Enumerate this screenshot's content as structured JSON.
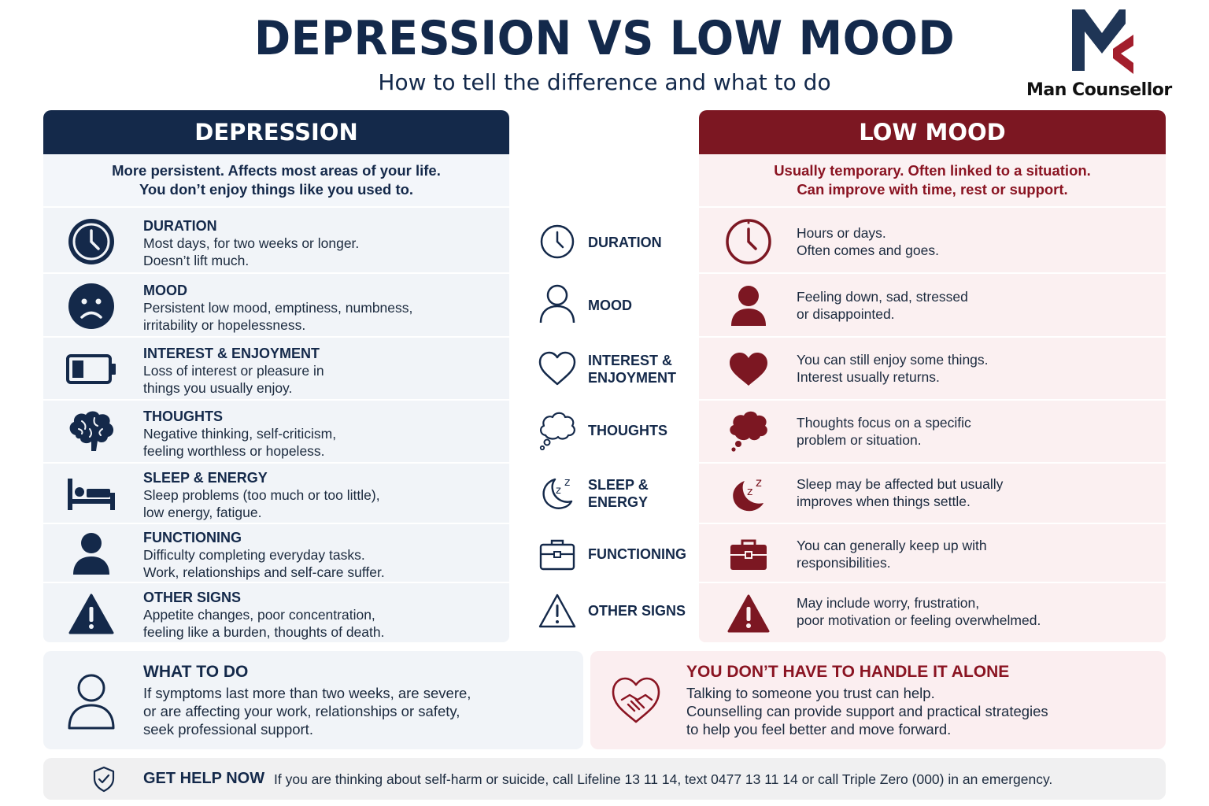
{
  "header": {
    "title": "DEPRESSION VS LOW MOOD",
    "subtitle": "How to tell the difference and what to do",
    "logo_text": "Man Counsellor"
  },
  "colors": {
    "navy": "#14294a",
    "maroon": "#7c1722",
    "navy_bg": "#f1f4f8",
    "maroon_bg": "#fbf0f1"
  },
  "depression": {
    "heading": "DEPRESSION",
    "summary_1": "More persistent. Affects most areas of your life.",
    "summary_2": "You don’t enjoy things like you used to.",
    "rows": [
      {
        "icon": "clock-icon",
        "title": "DURATION",
        "line1": "Most days, for two weeks or longer.",
        "line2": "Doesn’t lift much."
      },
      {
        "icon": "sad-face-icon",
        "title": "MOOD",
        "line1": "Persistent low mood, emptiness, numbness,",
        "line2": "irritability or hopelessness."
      },
      {
        "icon": "low-battery-icon",
        "title": "INTEREST & ENJOYMENT",
        "line1": "Loss of interest or pleasure in",
        "line2": "things you usually enjoy."
      },
      {
        "icon": "brain-icon",
        "title": "THOUGHTS",
        "line1": "Negative thinking, self-criticism,",
        "line2": "feeling worthless or hopeless."
      },
      {
        "icon": "bed-icon",
        "title": "SLEEP & ENERGY",
        "line1": "Sleep problems (too much or too little),",
        "line2": "low energy, fatigue."
      },
      {
        "icon": "person-icon",
        "title": "FUNCTIONING",
        "line1": "Difficulty completing everyday tasks.",
        "line2": "Work, relationships and self-care suffer."
      },
      {
        "icon": "warning-icon",
        "title": "OTHER SIGNS",
        "line1": "Appetite changes, poor concentration,",
        "line2": "feeling like a burden, thoughts of death."
      }
    ]
  },
  "categories": [
    {
      "icon": "clock-outline-icon",
      "line1": "DURATION",
      "line2": ""
    },
    {
      "icon": "person-outline-icon",
      "line1": "MOOD",
      "line2": ""
    },
    {
      "icon": "heart-outline-icon",
      "line1": "INTEREST &",
      "line2": "ENJOYMENT"
    },
    {
      "icon": "thought-bubble-outline-icon",
      "line1": "THOUGHTS",
      "line2": ""
    },
    {
      "icon": "moon-sleep-outline-icon",
      "line1": "SLEEP &",
      "line2": "ENERGY"
    },
    {
      "icon": "briefcase-outline-icon",
      "line1": "FUNCTIONING",
      "line2": ""
    },
    {
      "icon": "warning-outline-icon",
      "line1": "OTHER SIGNS",
      "line2": ""
    }
  ],
  "low_mood": {
    "heading": "LOW MOOD",
    "summary_1": "Usually temporary. Often linked to a situation.",
    "summary_2": "Can improve with time, rest or support.",
    "rows": [
      {
        "icon": "clock-icon",
        "line1": "Hours or days.",
        "line2": "Often comes and goes."
      },
      {
        "icon": "person-icon",
        "line1": "Feeling down, sad, stressed",
        "line2": "or disappointed."
      },
      {
        "icon": "heart-icon",
        "line1": "You can still enjoy some things.",
        "line2": "Interest usually returns."
      },
      {
        "icon": "thought-bubble-icon",
        "line1": "Thoughts focus on a specific",
        "line2": "problem or situation."
      },
      {
        "icon": "moon-sleep-icon",
        "line1": "Sleep may be affected but usually",
        "line2": "improves when things settle."
      },
      {
        "icon": "briefcase-icon",
        "line1": "You can generally keep up with",
        "line2": "responsibilities."
      },
      {
        "icon": "warning-icon",
        "line1": "May include worry, frustration,",
        "line2": "poor motivation or feeling overwhelmed."
      }
    ]
  },
  "what_to_do": {
    "title": "WHAT TO DO",
    "line1": "If symptoms last more than two weeks, are severe,",
    "line2": "or are affecting your work, relationships or safety,",
    "line3": "seek professional support."
  },
  "not_alone": {
    "title": "YOU DON’T HAVE TO HANDLE IT ALONE",
    "line1": "Talking to someone you trust can help.",
    "line2": "Counselling can provide support and practical strategies",
    "line3": "to help you feel better and move forward."
  },
  "help": {
    "title": "GET HELP NOW",
    "text": "If you are thinking about self-harm or suicide, call Lifeline 13 11 14, text 0477 13 11 14 or call Triple Zero (000) in an emergency."
  }
}
